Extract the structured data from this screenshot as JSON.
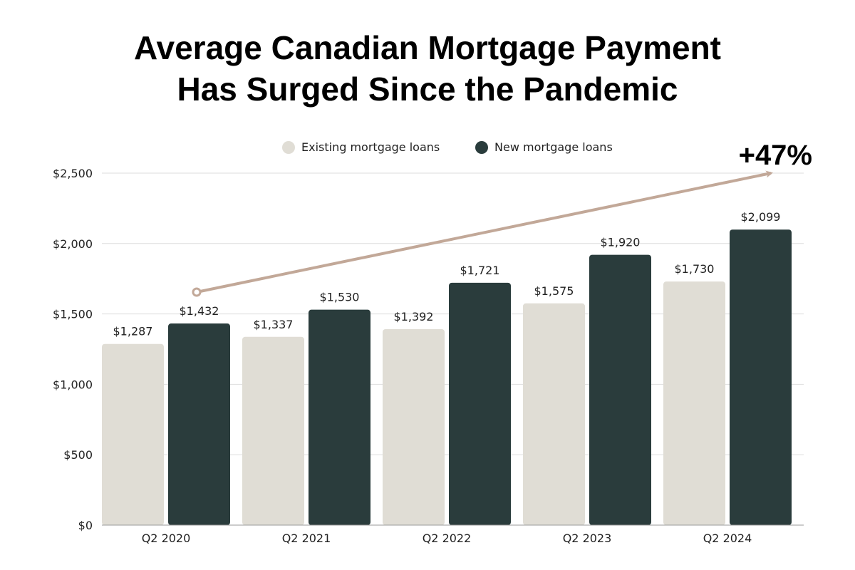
{
  "chart_data": {
    "type": "bar",
    "title_lines": [
      "Average Canadian Mortgage Payment",
      "Has Surged Since the Pandemic"
    ],
    "xlabel": "",
    "ylabel": "",
    "categories": [
      "Q2 2020",
      "Q2 2021",
      "Q2 2022",
      "Q2 2023",
      "Q2 2024"
    ],
    "series": [
      {
        "name": "Existing mortgage loans",
        "color": "#e0ddd5",
        "values": [
          1287,
          1337,
          1392,
          1575,
          1730
        ],
        "labels": [
          "$1,287",
          "$1,337",
          "$1,392",
          "$1,575",
          "$1,730"
        ]
      },
      {
        "name": "New mortgage loans",
        "color": "#2a3c3c",
        "values": [
          1432,
          1530,
          1721,
          1920,
          2099
        ],
        "labels": [
          "$1,432",
          "$1,530",
          "$1,721",
          "$1,920",
          "$2,099"
        ]
      }
    ],
    "ylim": [
      0,
      2500
    ],
    "yticks": [
      0,
      500,
      1000,
      1500,
      2000,
      2500
    ],
    "ytick_labels": [
      "$0",
      "$500",
      "$1,000",
      "$1,500",
      "$2,000",
      "$2,500"
    ],
    "grid": true,
    "legend_position": "top-center",
    "annotation": {
      "text": "+47%",
      "arrow_color": "#c2a898"
    }
  }
}
